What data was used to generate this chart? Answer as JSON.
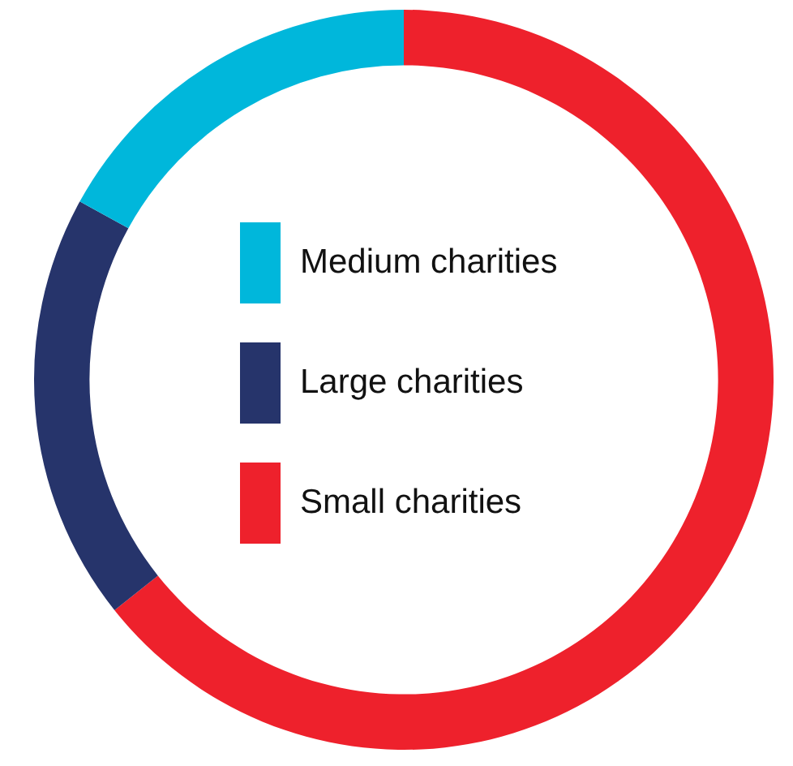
{
  "chart_data": {
    "type": "donut",
    "categories": [
      "Small charities",
      "Large charities",
      "Medium charities"
    ],
    "values": [
      64.3,
      18.7,
      17
    ],
    "colors": [
      "#ee212c",
      "#26346b",
      "#00b7db"
    ],
    "legend": "center"
  }
}
